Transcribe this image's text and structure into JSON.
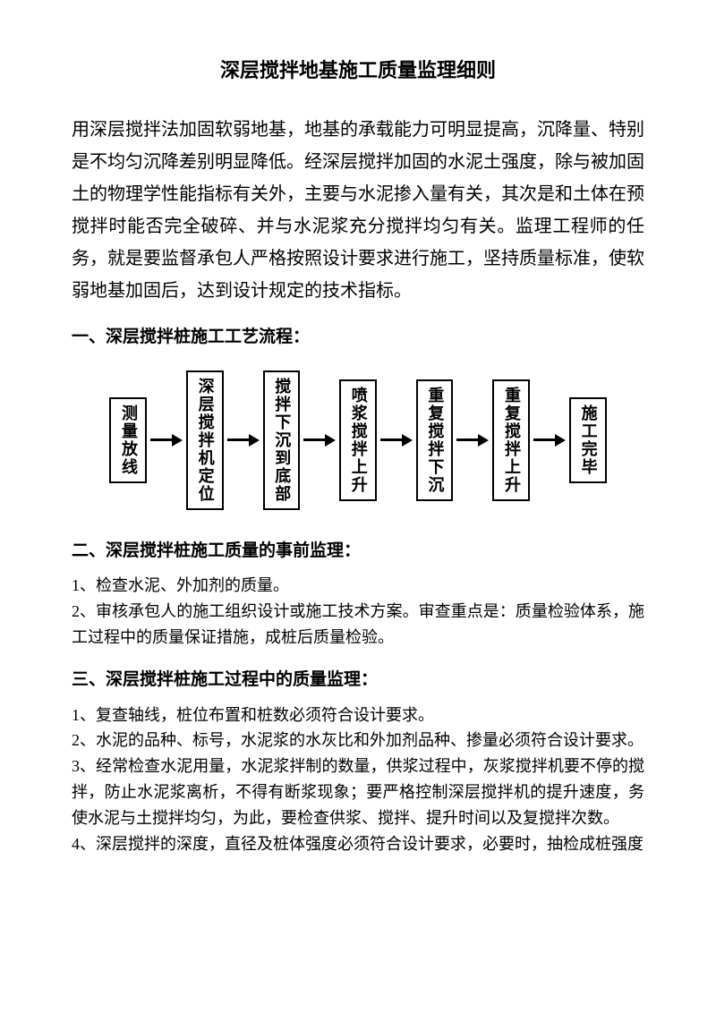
{
  "title": "深层搅拌地基施工质量监理细则",
  "intro": "用深层搅拌法加固软弱地基，地基的承载能力可明显提高，沉降量、特别是不均匀沉降差别明显降低。经深层搅拌加固的水泥土强度，除与被加固土的物理学性能指标有关外，主要与水泥掺入量有关，其次是和土体在预搅拌时能否完全破碎、并与水泥浆充分搅拌均匀有关。监理工程师的任务，就是要监督承包人严格按照设计要求进行施工，坚持质量标准，使软弱地基加固后，达到设计规定的技术指标。",
  "section1": {
    "head": "一、深层搅拌桩施工工艺流程：",
    "flow": {
      "nodes": [
        "测量放线",
        "深层搅拌机定位",
        "搅拌下沉到底部",
        "喷浆搅拌上升",
        "重复搅拌下沉",
        "重复搅拌上升",
        "施工完毕"
      ],
      "box_border_color": "#000000",
      "box_border_width": 2.5,
      "arrow_color": "#000000",
      "font_size": 18,
      "orientation": "vertical-text-horizontal-flow"
    }
  },
  "section2": {
    "head": "二、深层搅拌桩施工质量的事前监理：",
    "items": [
      "1、检查水泥、外加剂的质量。",
      "2、审核承包人的施工组织设计或施工技术方案。审查重点是：质量检验体系，施工过程中的质量保证措施，成桩后质量检验。"
    ]
  },
  "section3": {
    "head": "三、深层搅拌桩施工过程中的质量监理：",
    "items": [
      "1、复查轴线，桩位布置和桩数必须符合设计要求。",
      "2、水泥的品种、标号，水泥浆的水灰比和外加剂品种、掺量必须符合设计要求。",
      "3、经常检查水泥用量，水泥浆拌制的数量，供浆过程中，灰浆搅拌机要不停的搅拌，防止水泥浆离析，不得有断浆现象；要严格控制深层搅拌机的提升速度，务使水泥与土搅拌均匀，为此，要检查供浆、搅拌、提升时间以及复搅拌次数。",
      "4、深层搅拌的深度，直径及桩体强度必须符合设计要求，必要时，抽检成桩强度"
    ]
  }
}
